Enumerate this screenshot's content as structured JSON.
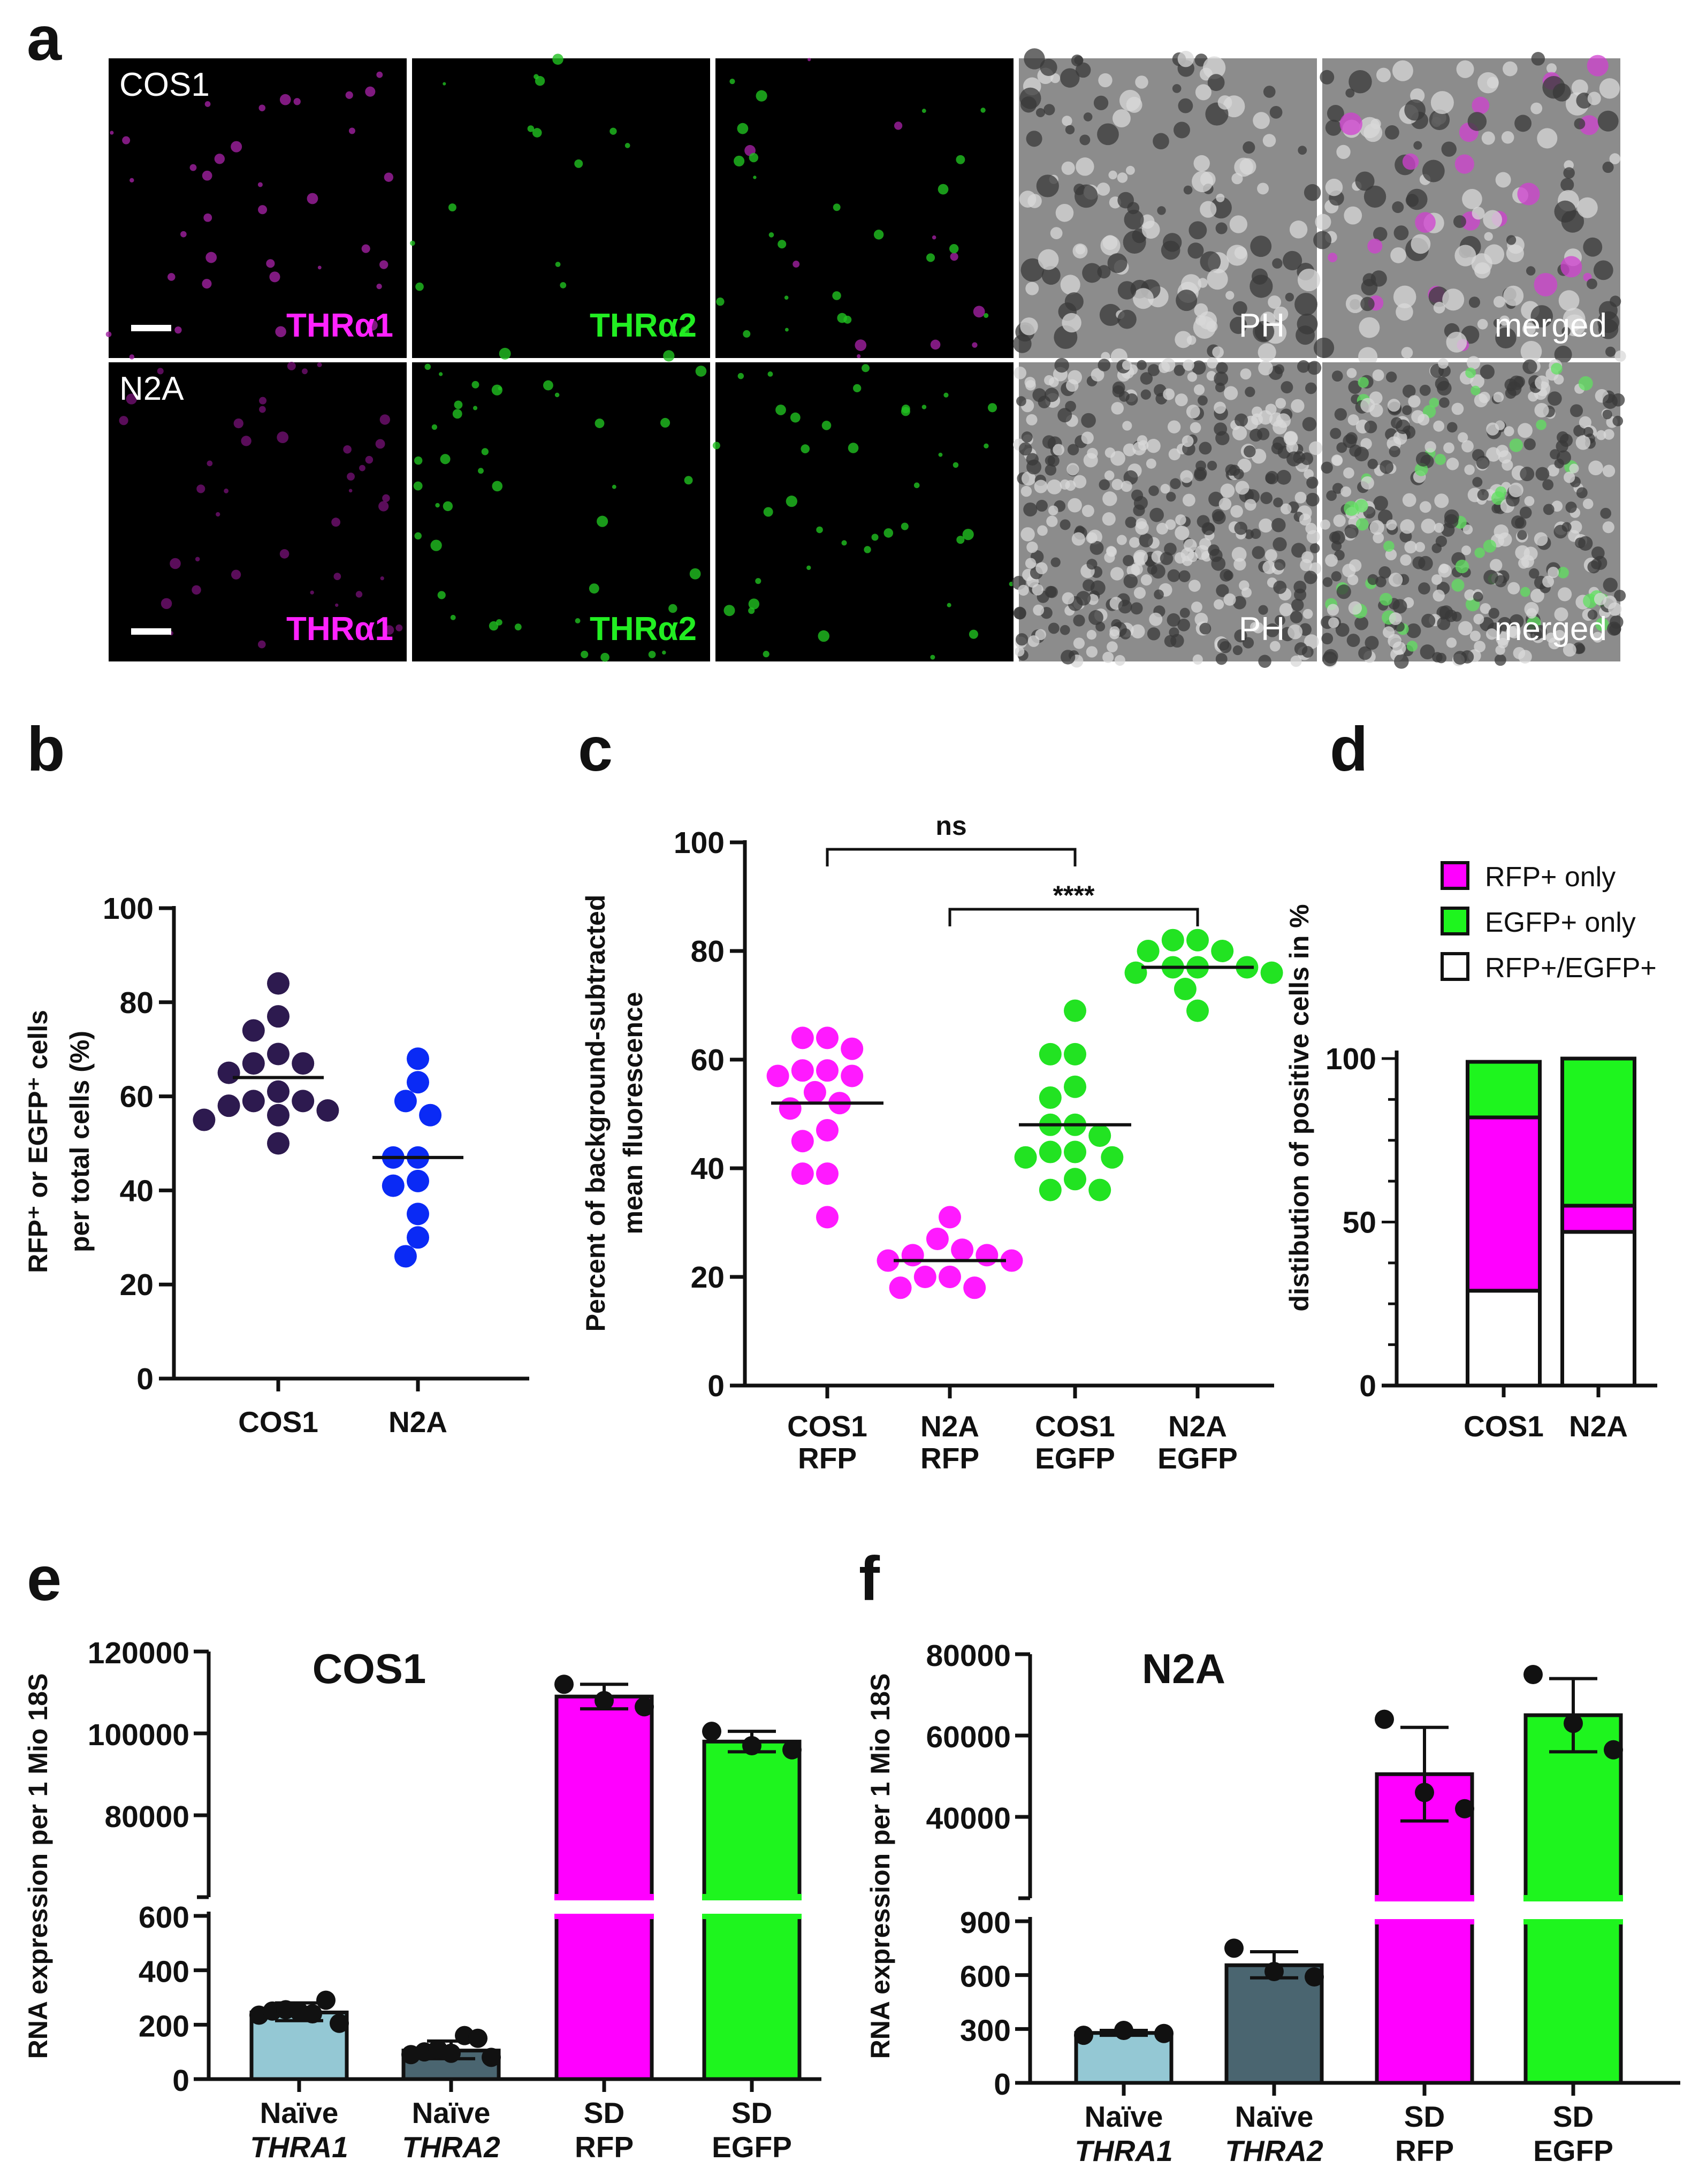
{
  "panel_labels": {
    "a": "a",
    "b": "b",
    "c": "c",
    "d": "d",
    "e": "e",
    "f": "f"
  },
  "panel_a": {
    "rows": [
      {
        "cell_line": "COS1"
      },
      {
        "cell_line": "N2A"
      }
    ],
    "channel_labels": {
      "thra1": "THRα1",
      "thra2": "THRα2",
      "ph": "PH",
      "merged": "merged"
    },
    "colors": {
      "thra1": "#ff22ff",
      "thra2": "#22ee22",
      "ph": "#ffffff"
    }
  },
  "chart_data": [
    {
      "panel": "b",
      "type": "scatter",
      "ylabel": [
        "RFP⁺ or EGFP⁺ cells",
        "per total cells (%)"
      ],
      "ylim": [
        0,
        100
      ],
      "yticks": [
        0,
        20,
        40,
        60,
        80,
        100
      ],
      "categories": [
        "COS1",
        "N2A"
      ],
      "series": [
        {
          "name": "COS1",
          "color": "#2d1a4f",
          "values": [
            84,
            77,
            74,
            69,
            67,
            67,
            65,
            61,
            59,
            59,
            58,
            57,
            56,
            55,
            50
          ],
          "mean": 64
        },
        {
          "name": "N2A",
          "color": "#0a2af5",
          "values": [
            68,
            63,
            59,
            56,
            47,
            47,
            42,
            41,
            35,
            30,
            26
          ],
          "mean": 47
        }
      ]
    },
    {
      "panel": "c",
      "type": "scatter",
      "ylabel": [
        "Percent of background-subtracted",
        "mean fluorescence"
      ],
      "ylim": [
        0,
        100
      ],
      "yticks": [
        0,
        20,
        40,
        60,
        80,
        100
      ],
      "categories": [
        [
          "COS1",
          "RFP"
        ],
        [
          "N2A",
          "RFP"
        ],
        [
          "COS1",
          "EGFP"
        ],
        [
          "N2A",
          "EGFP"
        ]
      ],
      "series": [
        {
          "name": "COS1 RFP",
          "color": "#ff1aff",
          "values": [
            64,
            64,
            62,
            58,
            58,
            57,
            57,
            54,
            52,
            51,
            47,
            45,
            39,
            39,
            31
          ],
          "mean": 52
        },
        {
          "name": "N2A RFP",
          "color": "#ff1aff",
          "values": [
            31,
            27,
            25,
            24,
            24,
            23,
            23,
            20,
            20,
            18,
            18
          ],
          "mean": 23
        },
        {
          "name": "COS1 EGFP",
          "color": "#22e322",
          "values": [
            69,
            61,
            61,
            55,
            53,
            48,
            48,
            46,
            43,
            43,
            42,
            42,
            38,
            36,
            36
          ],
          "mean": 48
        },
        {
          "name": "N2A EGFP",
          "color": "#22e322",
          "values": [
            82,
            82,
            80,
            80,
            77,
            77,
            77,
            76,
            76,
            73,
            69
          ],
          "mean": 77
        }
      ],
      "comparisons": [
        {
          "from": 0,
          "to": 2,
          "label": "ns"
        },
        {
          "from": 1,
          "to": 3,
          "label": "****"
        }
      ]
    },
    {
      "panel": "d",
      "type": "bar",
      "stacked": true,
      "ylabel": "distibution of positive cells in %",
      "ylim": [
        0,
        100
      ],
      "yticks": [
        0,
        50,
        100
      ],
      "categories": [
        "COS1",
        "N2A"
      ],
      "legend_position": "top",
      "series": [
        {
          "name": "RFP+/EGFP+",
          "color": "#ffffff",
          "values": [
            29,
            47
          ]
        },
        {
          "name": "RFP+ only",
          "color": "#ff00ff",
          "values": [
            53,
            8
          ]
        },
        {
          "name": "EGFP+ only",
          "color": "#1ef51e",
          "values": [
            17,
            45
          ]
        }
      ],
      "legend_order": [
        1,
        2,
        0
      ]
    },
    {
      "panel": "e",
      "type": "bar",
      "title": "COS1",
      "ylabel": "RNA expression per 1 Mio 18S",
      "y_broken": true,
      "ylim_lower": [
        0,
        600
      ],
      "ylim_upper": [
        60000,
        120000
      ],
      "yticks_lower": [
        0,
        200,
        400,
        600
      ],
      "yticks_upper": [
        80000,
        100000,
        120000
      ],
      "categories": [
        {
          "line1": "Naïve",
          "line2": "THRA1",
          "italic": true
        },
        {
          "line1": "Naïve",
          "line2": "THRA2",
          "italic": true
        },
        {
          "line1": "SD",
          "line2": "RFP",
          "italic": false
        },
        {
          "line1": "SD",
          "line2": "EGFP",
          "italic": false
        }
      ],
      "bars": [
        {
          "mean": 245,
          "err": [
            215,
            280
          ],
          "color": "#94c8d4",
          "points": [
            235,
            250,
            255,
            248,
            240,
            290,
            205
          ]
        },
        {
          "mean": 105,
          "err": [
            75,
            140
          ],
          "color": "#4a6570",
          "points": [
            90,
            100,
            110,
            95,
            160,
            150,
            80
          ]
        },
        {
          "mean": 109000,
          "err": [
            106000,
            112000
          ],
          "color": "#ff00ff",
          "points": [
            112000,
            108000,
            106500
          ]
        },
        {
          "mean": 98000,
          "err": [
            95500,
            100500
          ],
          "color": "#1ef51e",
          "points": [
            100500,
            97000,
            96000
          ]
        }
      ]
    },
    {
      "panel": "f",
      "type": "bar",
      "title": "N2A",
      "ylabel": "RNA expression per 1 Mio 18S",
      "y_broken": true,
      "ylim_lower": [
        0,
        900
      ],
      "ylim_upper": [
        20000,
        80000
      ],
      "yticks_lower": [
        0,
        300,
        600,
        900
      ],
      "yticks_upper": [
        40000,
        60000,
        80000
      ],
      "categories": [
        {
          "line1": "Naïve",
          "line2": "THRA1",
          "italic": true
        },
        {
          "line1": "Naïve",
          "line2": "THRA2",
          "italic": true
        },
        {
          "line1": "SD",
          "line2": "RFP",
          "italic": false
        },
        {
          "line1": "SD",
          "line2": "EGFP",
          "italic": false
        }
      ],
      "bars": [
        {
          "mean": 278,
          "err": [
            265,
            292
          ],
          "color": "#94c8d4",
          "points": [
            265,
            292,
            275
          ]
        },
        {
          "mean": 655,
          "err": [
            585,
            730
          ],
          "color": "#4a6570",
          "points": [
            750,
            620,
            590
          ]
        },
        {
          "mean": 50500,
          "err": [
            39000,
            62000
          ],
          "color": "#ff00ff",
          "points": [
            64000,
            46000,
            42000
          ]
        },
        {
          "mean": 65000,
          "err": [
            56000,
            74000
          ],
          "color": "#1ef51e",
          "points": [
            75000,
            63000,
            56500
          ]
        }
      ]
    }
  ]
}
